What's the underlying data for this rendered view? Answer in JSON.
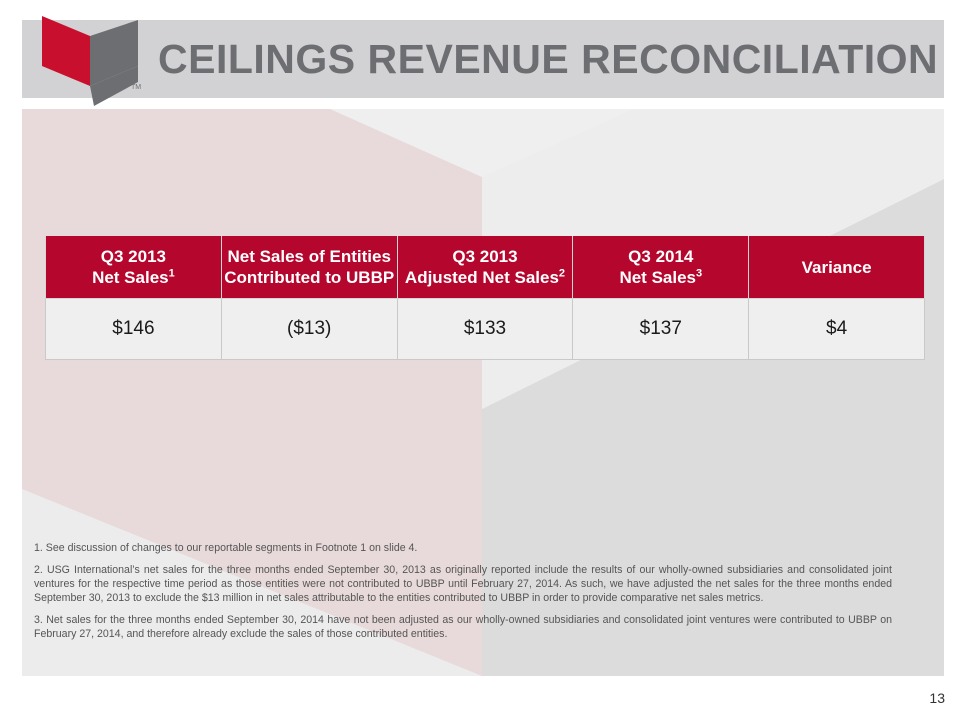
{
  "header": {
    "title": "CEILINGS REVENUE RECONCILIATION",
    "tm": "TM"
  },
  "colors": {
    "accent": "#b5062e",
    "header_bg": "#d2d2d4",
    "title_color": "#6d6e71"
  },
  "table": {
    "headers": [
      {
        "line1": "Q3 2013",
        "line2": "Net Sales",
        "sup": "1"
      },
      {
        "line1": "Net Sales of Entities",
        "line2": "Contributed to UBBP",
        "sup": ""
      },
      {
        "line1": "Q3 2013",
        "line2": "Adjusted Net Sales",
        "sup": "2"
      },
      {
        "line1": "Q3 2014",
        "line2": "Net Sales",
        "sup": "3"
      },
      {
        "line1": "Variance",
        "line2": "",
        "sup": ""
      }
    ],
    "row": [
      "$146",
      "($13)",
      "$133",
      "$137",
      "$4"
    ]
  },
  "footnotes": [
    "1. See discussion of changes to our reportable segments in Footnote 1 on slide 4.",
    "2. USG International’s net sales for the three months ended September 30, 2013 as originally reported include the results of our wholly-owned subsidiaries and consolidated joint ventures for the respective time period as those entities were not contributed to UBBP until February 27, 2014.  As such, we have adjusted the net sales for the three months ended September 30, 2013 to exclude the $13 million in net sales attributable to the entities contributed to UBBP in order to provide comparative net sales metrics.",
    "3. Net sales for the three months ended September 30, 2014 have not been adjusted as our wholly-owned subsidiaries and consolidated joint ventures were contributed to UBBP on February 27, 2014, and therefore already exclude the sales of those contributed entities."
  ],
  "page_number": "13"
}
